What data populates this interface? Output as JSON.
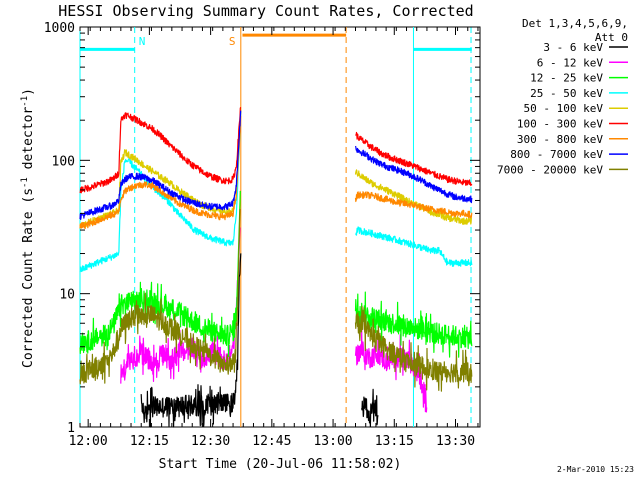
{
  "chart_data": {
    "type": "line",
    "title": "HESSI Observing Summary Count Rates, Corrected",
    "xlabel": "Start Time (20-Jul-06 11:58:02)",
    "ylabel": "Corrected Count Rate (s⁻¹ detector⁻¹)",
    "ylabel_main": "Corrected Count Rate (s",
    "ylabel_sup1": "-1",
    "ylabel_mid": " detector",
    "ylabel_sup2": "-1",
    "ylabel_end": ")",
    "yscale": "log",
    "ylim": [
      1,
      1000
    ],
    "xlim_minutes": [
      0,
      98
    ],
    "x_ticks": [
      "12:00",
      "12:15",
      "12:30",
      "12:45",
      "13:00",
      "13:15",
      "13:30"
    ],
    "x_tick_minutes": [
      2,
      17,
      32,
      47,
      62,
      77,
      92
    ],
    "y_ticks": [
      "1",
      "10",
      "100",
      "1000"
    ],
    "y_tick_values": [
      1,
      10,
      100,
      1000
    ],
    "legend_header": [
      "Det 1,3,4,5,6,9,",
      "Att 0"
    ],
    "legend_position": "outside-right",
    "timestamp": "2-Mar-2010 15:23",
    "gaps_minutes": [
      [
        39.5,
        67.5
      ]
    ],
    "series": [
      {
        "name": "3 - 6 keV",
        "color": "#000000",
        "x": [
          15,
          16,
          17,
          38,
          38.6,
          39,
          39.4,
          69,
          70,
          71,
          72,
          73
        ],
        "y": [
          1.5,
          1.2,
          1.4,
          1.5,
          3,
          12,
          20,
          1.3,
          1.5,
          1.2,
          1.4,
          1.2
        ]
      },
      {
        "name": "6 - 12 keV",
        "color": "#ff00ff",
        "x": [
          10,
          12,
          15,
          18,
          20,
          22,
          25,
          28,
          30,
          33,
          35,
          37,
          38,
          38.6,
          39.2,
          67.5,
          69,
          71,
          73,
          75,
          77,
          79,
          81,
          83,
          85
        ],
        "y": [
          2.5,
          3.1,
          3.6,
          2.9,
          3.5,
          3.2,
          3.7,
          3.9,
          3.3,
          3.6,
          3.1,
          3.5,
          5,
          12,
          30,
          3.4,
          3.8,
          3.3,
          3.6,
          3.1,
          3.3,
          3.4,
          3.0,
          2.5,
          1.5
        ]
      },
      {
        "name": "12 - 25 keV",
        "color": "#00ff00",
        "x": [
          0,
          2,
          4,
          6,
          8,
          10,
          12,
          14,
          16,
          18,
          20,
          22,
          24,
          26,
          28,
          30,
          32,
          34,
          36,
          38,
          38.6,
          39.3,
          67.5,
          68,
          70,
          72,
          74,
          76,
          78,
          80,
          82,
          84,
          86,
          88,
          90,
          92,
          94,
          96
        ],
        "y": [
          4.2,
          4.4,
          4.6,
          5,
          5.6,
          8.2,
          8.6,
          8.8,
          8.4,
          8.6,
          8.2,
          7.8,
          7.4,
          6.6,
          6.1,
          5.6,
          5.3,
          5.0,
          4.8,
          5.4,
          12,
          60,
          7.8,
          7.6,
          7.0,
          6.6,
          6.3,
          6.1,
          5.9,
          5.7,
          5.5,
          5.3,
          5.1,
          5.0,
          4.9,
          4.8,
          4.7,
          4.6
        ]
      },
      {
        "name": "25 - 50 keV",
        "color": "#00ffff",
        "x": [
          0,
          2,
          4,
          6,
          8,
          9.5,
          10,
          11,
          12,
          14,
          16,
          18,
          20,
          22,
          24,
          26,
          28,
          30,
          32,
          34,
          36,
          37.5,
          38.3,
          39,
          39.4,
          67.5,
          68,
          70,
          72,
          74,
          76,
          78,
          80,
          82,
          84,
          86,
          88,
          90,
          92,
          94,
          96
        ],
        "y": [
          15,
          16,
          17,
          18,
          19,
          20,
          58,
          100,
          98,
          85,
          72,
          62,
          55,
          48,
          40,
          35,
          30,
          28,
          26,
          25,
          24,
          24,
          40,
          120,
          250,
          28,
          30,
          29,
          28,
          27,
          26,
          25,
          24,
          23,
          22,
          21,
          21,
          17,
          17,
          17,
          17
        ]
      },
      {
        "name": "50 - 100 keV",
        "color": "#ddcc00",
        "x": [
          0,
          2,
          4,
          6,
          8,
          9.5,
          10,
          11,
          12,
          14,
          16,
          18,
          20,
          22,
          24,
          26,
          28,
          30,
          32,
          34,
          36,
          37.5,
          38.3,
          39,
          39.4,
          67.5,
          68,
          70,
          72,
          74,
          76,
          78,
          80,
          82,
          84,
          86,
          88,
          90,
          92,
          94,
          96
        ],
        "y": [
          32,
          34,
          36,
          38,
          40,
          42,
          95,
          115,
          110,
          100,
          90,
          82,
          74,
          68,
          60,
          55,
          50,
          46,
          44,
          42,
          41,
          41,
          55,
          140,
          250,
          82,
          80,
          72,
          66,
          62,
          58,
          54,
          50,
          47,
          44,
          41,
          39,
          37,
          36,
          35,
          35
        ]
      },
      {
        "name": "100 - 300 keV",
        "color": "#ff0000",
        "x": [
          0,
          2,
          4,
          6,
          8,
          9.5,
          10,
          11,
          12,
          14,
          16,
          18,
          20,
          22,
          24,
          26,
          28,
          30,
          32,
          34,
          36,
          37.5,
          38.3,
          39,
          39.4,
          67.5,
          68,
          70,
          72,
          74,
          76,
          78,
          80,
          82,
          84,
          86,
          88,
          90,
          92,
          94,
          96
        ],
        "y": [
          60,
          62,
          65,
          68,
          72,
          80,
          200,
          220,
          215,
          200,
          185,
          170,
          150,
          130,
          115,
          100,
          90,
          82,
          76,
          72,
          70,
          72,
          90,
          180,
          270,
          160,
          150,
          135,
          122,
          112,
          105,
          100,
          95,
          90,
          85,
          80,
          76,
          72,
          70,
          68,
          67
        ]
      },
      {
        "name": "300 - 800 keV",
        "color": "#ff8800",
        "x": [
          0,
          2,
          4,
          6,
          8,
          9.5,
          10,
          11,
          12,
          14,
          16,
          18,
          20,
          22,
          24,
          26,
          28,
          30,
          32,
          34,
          36,
          37.5,
          38.3,
          39,
          39.4,
          67.5,
          68,
          70,
          72,
          74,
          76,
          78,
          80,
          82,
          84,
          86,
          88,
          90,
          92,
          94,
          96
        ],
        "y": [
          32,
          33,
          35,
          37,
          39,
          41,
          52,
          58,
          62,
          65,
          66,
          64,
          58,
          53,
          48,
          45,
          42,
          40,
          39,
          38,
          38,
          40,
          55,
          130,
          230,
          50,
          55,
          55,
          54,
          52,
          50,
          48,
          47,
          46,
          44,
          43,
          42,
          41,
          40,
          40,
          39
        ]
      },
      {
        "name": "800 - 7000 keV",
        "color": "#0000ff",
        "x": [
          0,
          2,
          4,
          6,
          8,
          9.5,
          10,
          11,
          12,
          14,
          16,
          18,
          20,
          22,
          24,
          26,
          28,
          30,
          32,
          34,
          36,
          37.5,
          38.3,
          39,
          39.4,
          67.5,
          68,
          70,
          72,
          74,
          76,
          78,
          80,
          82,
          84,
          86,
          88,
          90,
          92,
          94,
          96
        ],
        "y": [
          38,
          40,
          42,
          44,
          46,
          50,
          65,
          72,
          75,
          76,
          74,
          70,
          64,
          58,
          54,
          50,
          48,
          46,
          45,
          45,
          45,
          48,
          65,
          150,
          240,
          125,
          120,
          110,
          100,
          93,
          88,
          84,
          80,
          75,
          70,
          64,
          60,
          56,
          53,
          52,
          51
        ]
      },
      {
        "name": "7000 - 20000 keV",
        "color": "#808000",
        "x": [
          0,
          2,
          4,
          6,
          8,
          10,
          12,
          14,
          16,
          18,
          20,
          22,
          24,
          26,
          28,
          30,
          32,
          34,
          36,
          38,
          38.6,
          39.2,
          67.5,
          68,
          70,
          72,
          74,
          76,
          78,
          80,
          82,
          84,
          86,
          88,
          90,
          92,
          94,
          96
        ],
        "y": [
          2.5,
          2.6,
          2.8,
          3.1,
          3.5,
          5.4,
          6.4,
          6.9,
          7.0,
          6.8,
          6.2,
          5.6,
          5.1,
          4.6,
          4.1,
          3.7,
          3.4,
          3.1,
          2.9,
          3.1,
          8,
          45,
          6.0,
          6.0,
          5.4,
          4.7,
          4.1,
          3.7,
          3.4,
          3.1,
          2.9,
          2.8,
          2.7,
          2.6,
          2.6,
          2.6,
          2.6,
          2.5
        ]
      }
    ],
    "annotations": [
      {
        "label": "N",
        "type": "night",
        "color": "#00ffff",
        "bars_minutes": [
          [
            0,
            13.4
          ],
          [
            81.7,
            96
          ]
        ],
        "bar_value": 680,
        "dashed_lines_minutes": [
          13.4,
          95.8
        ],
        "solid_lines_minutes": [
          0,
          81.7
        ],
        "label_minute": 15.2
      },
      {
        "label": "S",
        "type": "saa",
        "color": "#ff8800",
        "bars_minutes": [
          [
            39.8,
            65.2
          ]
        ],
        "bar_value": 870,
        "dashed_lines_minutes": [
          65.2
        ],
        "solid_lines_minutes": [
          39.4
        ],
        "label_minute": 37.3
      }
    ]
  }
}
